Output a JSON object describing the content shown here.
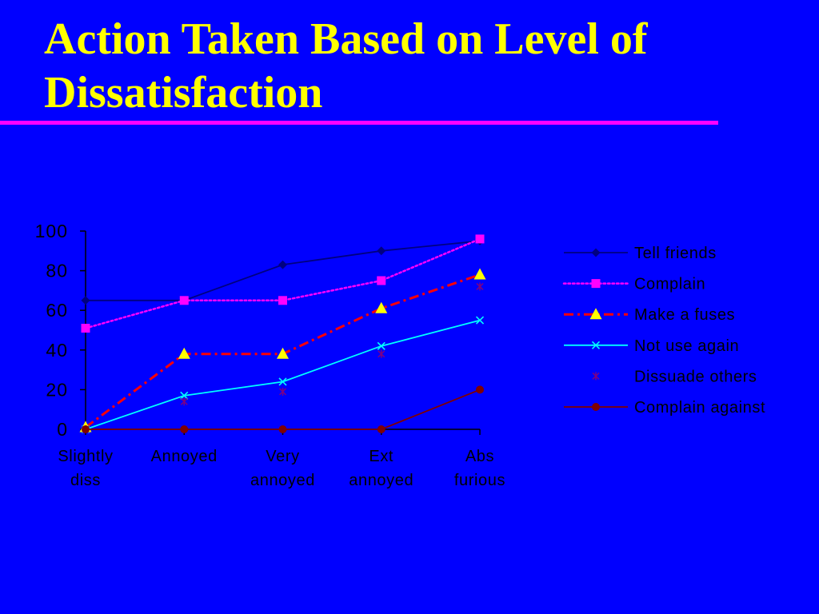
{
  "page": {
    "background_color": "#0000FF"
  },
  "slide": {
    "title_color": "#FFFF00",
    "rule_color": "#FF00FF"
  },
  "chart_data": {
    "type": "line",
    "title": "Action Taken Based on Level of Dissatisfaction",
    "categories": [
      "Slightly diss",
      "Annoyed",
      "Very annoyed",
      "Ext annoyed",
      "Abs furious"
    ],
    "ylim": [
      0,
      100
    ],
    "yticks": [
      0,
      20,
      40,
      60,
      80,
      100
    ],
    "grid": false,
    "legend_position": "right",
    "axis_color": "#000000",
    "text_color": "#000000",
    "series": [
      {
        "name": "Tell friends",
        "values": [
          65,
          65,
          83,
          90,
          95
        ],
        "color": "#000080",
        "line_style": "solid",
        "marker": "diamond",
        "marker_color": "#000080"
      },
      {
        "name": "Complain",
        "values": [
          51,
          65,
          65,
          75,
          96
        ],
        "color": "#FF00FF",
        "line_style": "dotted",
        "marker": "square",
        "marker_color": "#FF00FF"
      },
      {
        "name": "Make a fuses",
        "values": [
          1,
          38,
          38,
          61,
          78
        ],
        "color": "#FF0000",
        "line_style": "dash-dot",
        "marker": "triangle",
        "marker_color": "#FFFF00"
      },
      {
        "name": "Not use again",
        "values": [
          0,
          17,
          24,
          42,
          55
        ],
        "color": "#00FFFF",
        "line_style": "solid",
        "marker": "x",
        "marker_color": "#00FFFF"
      },
      {
        "name": "Dissuade others",
        "values": [
          0,
          14,
          19,
          38,
          72
        ],
        "color": "#800080",
        "line_style": "none",
        "marker": "asterisk",
        "marker_color": "#800080"
      },
      {
        "name": "Complain against",
        "values": [
          0,
          0,
          0,
          0,
          20
        ],
        "color": "#800000",
        "line_style": "solid",
        "marker": "circle",
        "marker_color": "#800000"
      }
    ]
  }
}
